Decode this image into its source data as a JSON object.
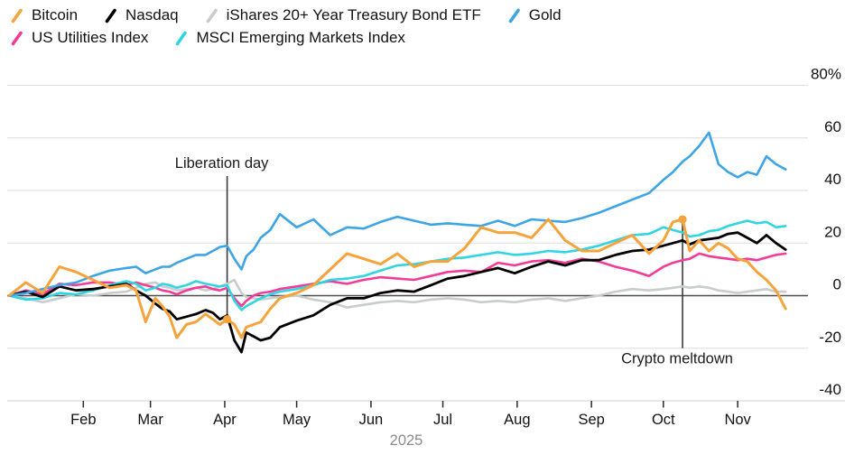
{
  "chart_data": {
    "type": "line",
    "title": "",
    "subtitle": "",
    "x_unit": "day_of_year_2025",
    "x_days": [
      0,
      7,
      14,
      21,
      28,
      35,
      42,
      49,
      53,
      57,
      61,
      64,
      67,
      70,
      74,
      78,
      82,
      85,
      88,
      91,
      94,
      97,
      99,
      102,
      105,
      109,
      113,
      120,
      127,
      134,
      141,
      148,
      155,
      162,
      169,
      176,
      183,
      190,
      197,
      204,
      211,
      218,
      225,
      232,
      239,
      246,
      253,
      260,
      267,
      273,
      277,
      281,
      284,
      288,
      292,
      296,
      300,
      304,
      308,
      312,
      316,
      320,
      324
    ],
    "series": [
      {
        "name": "iShares 20+ Year Treasury Bond ETF",
        "color": "#c9cccf",
        "width": 2.6,
        "values": [
          0,
          -1,
          -2.5,
          -1,
          0.5,
          0,
          1,
          1.5,
          3,
          4.5,
          5,
          3.5,
          3,
          2,
          2.5,
          3,
          2,
          2.5,
          3.5,
          4.5,
          6,
          1,
          -0.5,
          -1,
          -1.5,
          -1,
          -0.5,
          0,
          -1.5,
          -2.5,
          -4.5,
          -3.5,
          -2.5,
          -2,
          -2.5,
          -1.5,
          -1,
          -1.5,
          -2.5,
          -2,
          -2.5,
          -1.5,
          -1,
          -2,
          -1,
          0,
          1.5,
          2.5,
          2,
          2.5,
          3,
          3.5,
          3,
          3.5,
          3,
          2,
          1.5,
          1,
          1.5,
          2,
          2.5,
          1.5,
          1.5
        ]
      },
      {
        "name": "US Utilities Index",
        "color": "#f23c97",
        "width": 2.6,
        "values": [
          0,
          2,
          0.5,
          4.5,
          4,
          5,
          5,
          4,
          5,
          4,
          3,
          2,
          1.5,
          0.5,
          2,
          3,
          3.5,
          2.5,
          2,
          3,
          -1,
          -4,
          -2,
          0,
          1,
          1.5,
          2.5,
          3.5,
          4.5,
          5.5,
          4.5,
          6,
          7,
          6.5,
          6,
          7.5,
          9,
          9.5,
          9,
          12.5,
          11.5,
          13,
          13.5,
          12.5,
          14,
          13,
          11,
          9.5,
          7.5,
          11,
          12.5,
          13.5,
          14,
          16,
          15,
          14.5,
          14,
          13.5,
          14,
          13.5,
          14.5,
          15.5,
          16
        ]
      },
      {
        "name": "MSCI Emerging Markets Index",
        "color": "#30d5e4",
        "width": 2.6,
        "values": [
          0,
          -1.5,
          -1,
          1,
          0.5,
          2,
          4,
          5.5,
          4.5,
          2,
          3,
          4.5,
          4,
          3,
          4,
          5.5,
          4.5,
          4,
          3.5,
          4,
          -2,
          -5.5,
          -4,
          -2.5,
          -1,
          0.5,
          1.5,
          2.5,
          4,
          6,
          6.5,
          7.5,
          9.5,
          11.5,
          12,
          13,
          14,
          14.5,
          15.5,
          16.5,
          15.5,
          16,
          17,
          16.5,
          17.5,
          19,
          21,
          23,
          23.5,
          26,
          25,
          24,
          22.5,
          23,
          24.5,
          25,
          26.5,
          27.5,
          28.5,
          27.5,
          28,
          26,
          26.5
        ]
      },
      {
        "name": "Nasdaq",
        "color": "#000000",
        "width": 2.8,
        "values": [
          0,
          1.5,
          -0.5,
          3.5,
          2,
          2.5,
          3.5,
          4.5,
          2,
          0,
          -3,
          -5,
          -6,
          -9,
          -8,
          -7,
          -5.5,
          -6.5,
          -9,
          -7.5,
          -17,
          -21.5,
          -14,
          -15.5,
          -17,
          -16,
          -12,
          -9.5,
          -7.5,
          -3.5,
          -1,
          -1,
          1,
          2,
          1.5,
          4,
          6.5,
          7.5,
          9,
          10.5,
          8.5,
          11,
          13,
          11.5,
          13.5,
          13.5,
          15.5,
          17,
          17.5,
          19,
          20,
          21,
          19.5,
          21,
          21.5,
          22,
          23.5,
          24,
          22,
          20,
          23,
          20,
          17.5
        ]
      },
      {
        "name": "Gold",
        "color": "#3da4e6",
        "width": 2.6,
        "values": [
          0,
          1,
          2.5,
          4,
          5,
          7.5,
          9.5,
          10.5,
          11,
          8.5,
          10,
          11,
          11,
          12.5,
          14,
          15.5,
          15.5,
          17,
          18.5,
          19,
          14,
          10,
          15,
          17.5,
          22,
          25,
          31,
          26,
          29,
          23,
          26,
          25.5,
          28,
          30,
          28.5,
          27,
          27.5,
          27,
          26.5,
          28.5,
          26.5,
          29,
          28.5,
          28,
          29.5,
          31.5,
          34,
          36.5,
          39,
          44,
          47,
          51,
          53,
          57,
          62,
          50,
          47,
          45,
          47,
          46,
          53,
          50,
          48
        ]
      },
      {
        "name": "Bitcoin",
        "color": "#f7a33b",
        "width": 3,
        "values": [
          0,
          5,
          1,
          11,
          9,
          6,
          3,
          4,
          2,
          -10,
          -1,
          -4,
          -8,
          -16,
          -11,
          -10,
          -7,
          -9,
          -11,
          -9,
          -11,
          -16,
          -12,
          -11,
          -10,
          -5,
          -1,
          1,
          4,
          10,
          16,
          14,
          12,
          16,
          11,
          13,
          13,
          18,
          26,
          24,
          24,
          22,
          29,
          21,
          17,
          17,
          20,
          23,
          16,
          21,
          28,
          29,
          17,
          21,
          17,
          20,
          18,
          14,
          13,
          9,
          6,
          2,
          -5
        ]
      }
    ],
    "legend": {
      "rows": [
        [
          "Bitcoin",
          "Nasdaq",
          "iShares 20+ Year Treasury Bond ETF",
          "Gold"
        ],
        [
          "US Utilities Index",
          "MSCI Emerging Markets Index"
        ]
      ]
    },
    "y_axis": {
      "tick_labels": [
        "80%",
        "60",
        "40",
        "20",
        "0",
        "-20",
        "-40"
      ],
      "tick_values": [
        80,
        60,
        40,
        20,
        0,
        -20,
        -40
      ],
      "range": [
        -40,
        80
      ],
      "grid": true,
      "zero_line": true,
      "side": "right"
    },
    "x_axis": {
      "tick_labels": [
        "Feb",
        "Mar",
        "Apr",
        "May",
        "Jun",
        "Jul",
        "Aug",
        "Sep",
        "Oct",
        "Nov"
      ],
      "tick_days": [
        31,
        59,
        90,
        120,
        151,
        181,
        212,
        243,
        273,
        304
      ],
      "caption": "2025"
    },
    "annotations": [
      {
        "label": "Liberation day",
        "day": 91,
        "dot_series": "Bitcoin",
        "dot_value": -9,
        "line_from_value": 45.5,
        "line_to_value": -9,
        "label_side": "above"
      },
      {
        "label": "Crypto meltdown",
        "day": 281,
        "dot_series": "Bitcoin",
        "dot_value": 29,
        "line_from_value": 29,
        "line_to_value": -20,
        "label_side": "below"
      }
    ],
    "style": {
      "grid_color": "#e2e2e2",
      "zero_line_color": "#4d4d4d",
      "axis_line_color": "#d9d9d9",
      "tick_mark_color": "#2b2b2b",
      "annotation_line_color": "#3a3a3a",
      "dot_color": "#f7a33b"
    }
  }
}
